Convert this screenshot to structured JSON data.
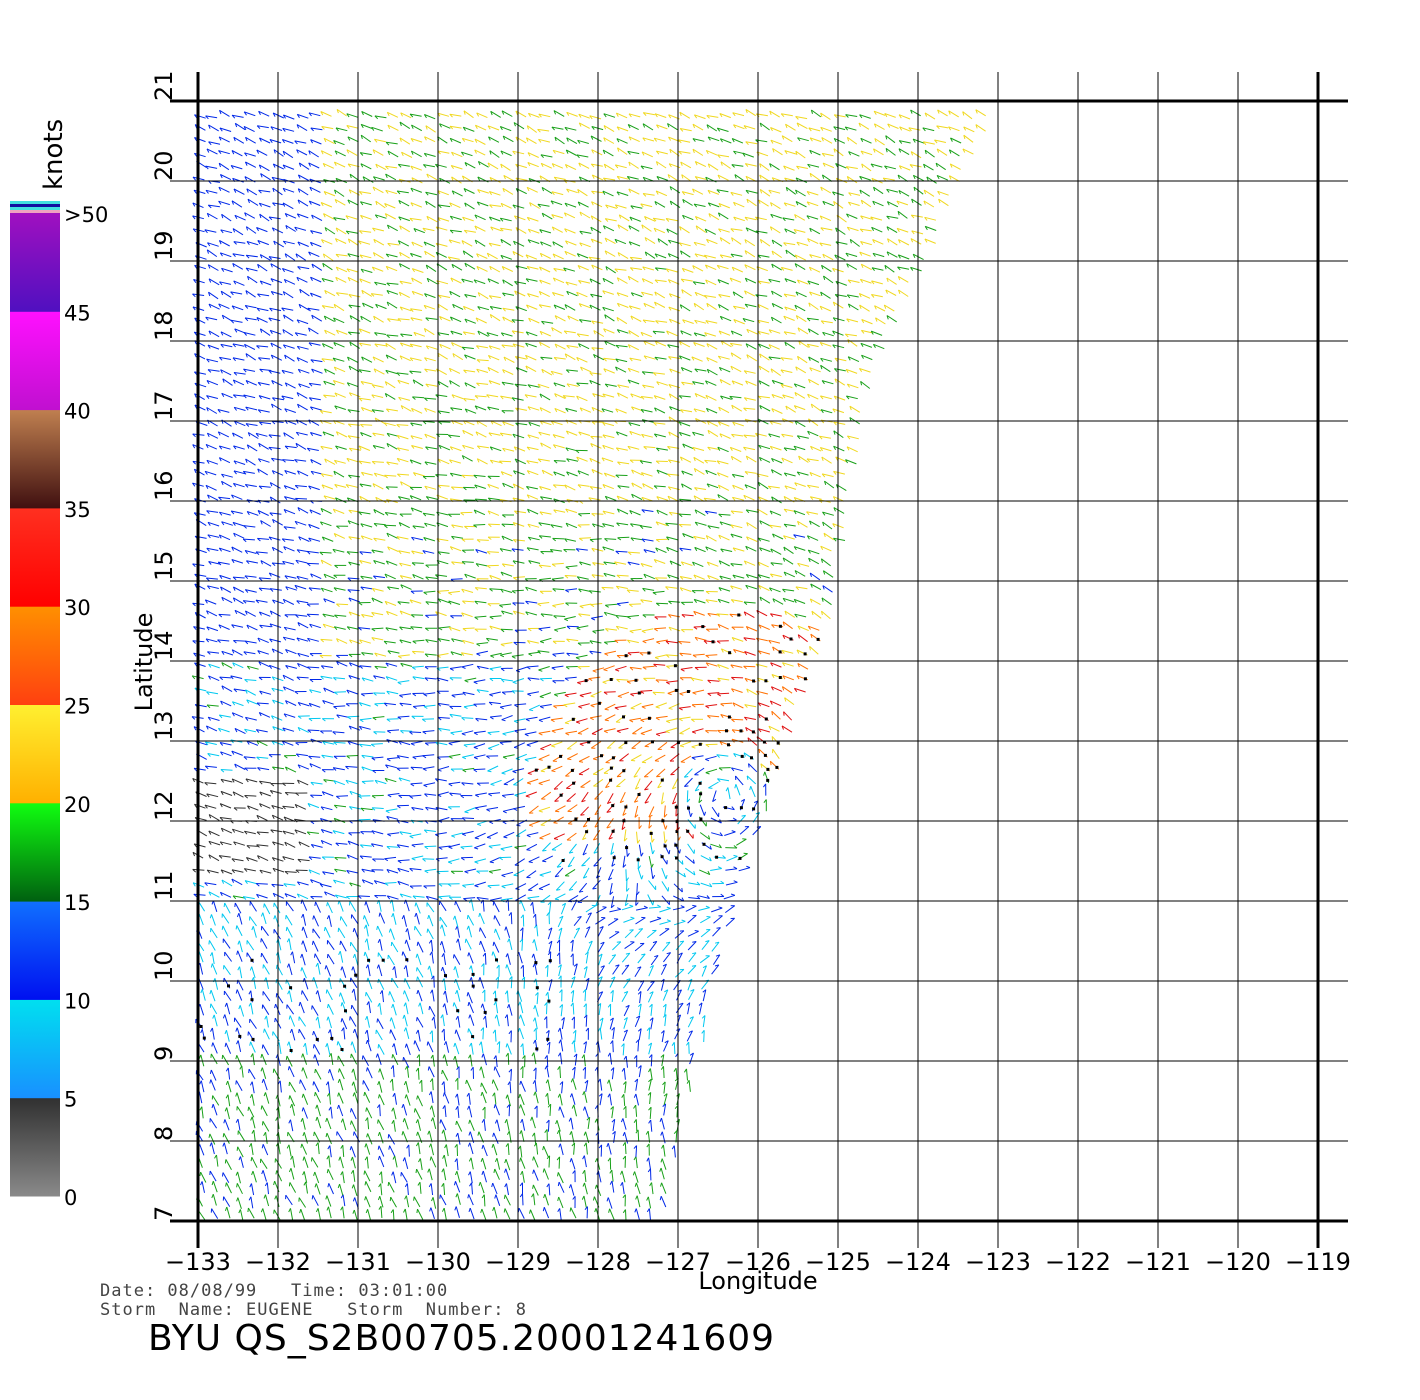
{
  "colorbar": {
    "unit": "knots",
    "segments": [
      {
        "from": 0,
        "to": 5,
        "top": "#303030",
        "bottom": "#8a8a8a"
      },
      {
        "from": 5,
        "to": 10,
        "top": "#00e0f0",
        "bottom": "#1890ff"
      },
      {
        "from": 10,
        "to": 15,
        "top": "#1070ff",
        "bottom": "#0010f0"
      },
      {
        "from": 15,
        "to": 20,
        "top": "#10ff10",
        "bottom": "#006010"
      },
      {
        "from": 20,
        "to": 25,
        "top": "#fff030",
        "bottom": "#ffb000"
      },
      {
        "from": 25,
        "to": 30,
        "top": "#ff9000",
        "bottom": "#ff4010"
      },
      {
        "from": 30,
        "to": 35,
        "top": "#ff3020",
        "bottom": "#ff0000"
      },
      {
        "from": 35,
        "to": 40,
        "top": "#c08050",
        "bottom": "#401010"
      },
      {
        "from": 40,
        "to": 45,
        "top": "#ff10ff",
        "bottom": "#c010d0"
      },
      {
        "from": 45,
        "to": 50,
        "top": "#a010c0",
        "bottom": "#5010c0"
      }
    ],
    "labels": [
      "0",
      "5",
      "10",
      "15",
      "20",
      "25",
      "30",
      "35",
      "40",
      "45",
      ">50"
    ],
    "top_stripes": [
      "#f0a0c0",
      "#40e0e0",
      "#1010a0",
      "#40e0e0"
    ]
  },
  "axes": {
    "x": {
      "label": "Longitude",
      "min": -133,
      "max": -119,
      "ticks": [
        "−133",
        "−132",
        "−131",
        "−130",
        "−129",
        "−128",
        "−127",
        "−126",
        "−125",
        "−124",
        "−123",
        "−122",
        "−121",
        "−120",
        "−119"
      ]
    },
    "y": {
      "label": "Latitude",
      "min": 7,
      "max": 21,
      "ticks": [
        "7",
        "8",
        "9",
        "10",
        "11",
        "12",
        "13",
        "14",
        "15",
        "16",
        "17",
        "18",
        "19",
        "20",
        "21"
      ]
    },
    "grid": true
  },
  "swath": {
    "edge_lon_lat": [
      [
        -127.2,
        7
      ],
      [
        -126.3,
        11
      ],
      [
        -125.1,
        14.5
      ],
      [
        -124.6,
        17.5
      ],
      [
        -123,
        21
      ]
    ]
  },
  "storm": {
    "center_lon": -126.4,
    "center_lat": 12.3
  },
  "footer": {
    "line1": "Date: 08/08/99   Time: 03:01:00",
    "line2": "Storm  Name: EUGENE   Storm  Number: 8",
    "title": "BYU  QS_S2B00705.20001241609"
  }
}
